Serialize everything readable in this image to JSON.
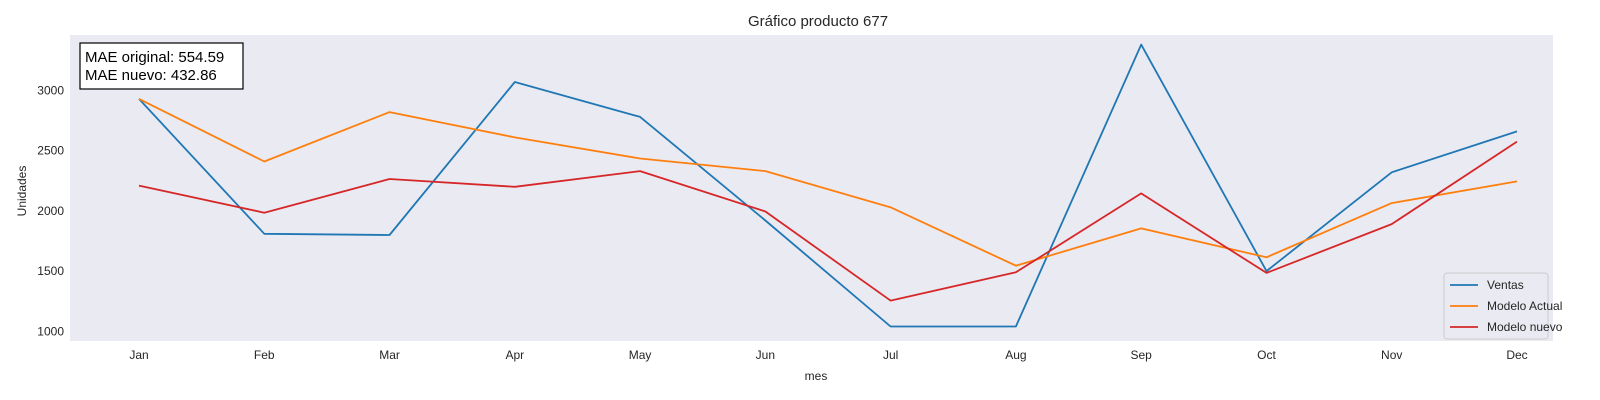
{
  "chart_data": {
    "type": "line",
    "title": "Gráfico producto 677",
    "xlabel": "mes",
    "ylabel": "Unidades",
    "categories": [
      "Jan",
      "Feb",
      "Mar",
      "Apr",
      "May",
      "Jun",
      "Jul",
      "Aug",
      "Sep",
      "Oct",
      "Nov",
      "Dec"
    ],
    "yticks": [
      1000,
      1500,
      2000,
      2500,
      3000
    ],
    "ylim": [
      920,
      3460
    ],
    "grid": false,
    "legend_position": "bottom-right",
    "series": [
      {
        "name": "Ventas",
        "color": "#1f77b4",
        "values": [
          2930,
          1810,
          1800,
          3070,
          2780,
          1920,
          1040,
          1040,
          3380,
          1500,
          2320,
          2660
        ]
      },
      {
        "name": "Modelo Actual",
        "color": "#ff7f0e",
        "values": [
          2930,
          2410,
          2820,
          2610,
          2435,
          2330,
          2030,
          1545,
          1855,
          1615,
          2065,
          2245
        ]
      },
      {
        "name": "Modelo nuevo",
        "color": "#d62728",
        "values": [
          2210,
          1985,
          2265,
          2200,
          2330,
          1995,
          1255,
          1490,
          2145,
          1485,
          1890,
          2575
        ]
      }
    ],
    "annotations": [
      "MAE original: 554.59",
      "MAE nuevo: 432.86"
    ]
  },
  "colors": {
    "plot_background": "#eaeaf2"
  }
}
